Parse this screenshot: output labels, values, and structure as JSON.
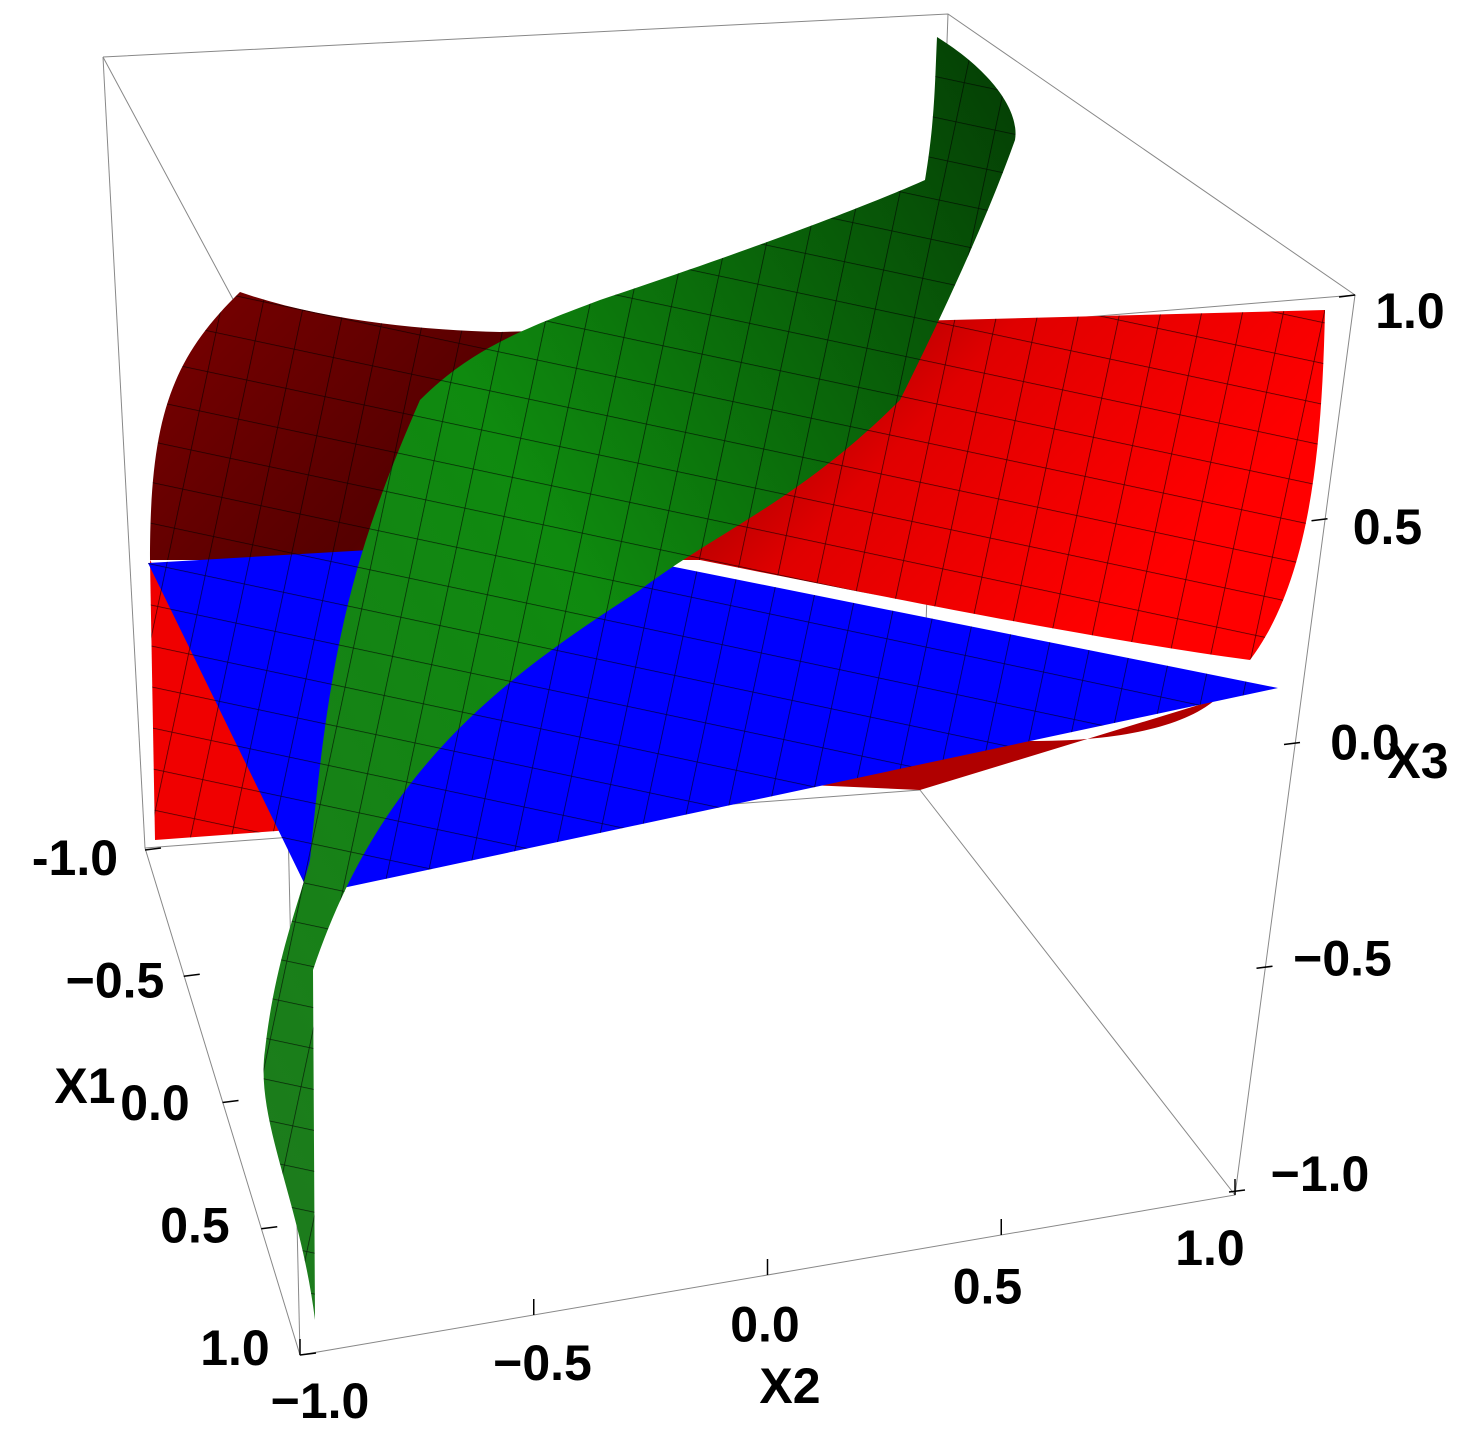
{
  "chart_data": {
    "type": "surface3d",
    "xlabel": "X1",
    "ylabel": "X2",
    "zlabel": "X3",
    "xlim": [
      -1,
      1
    ],
    "ylim": [
      -1,
      1
    ],
    "zlim": [
      -1,
      1
    ],
    "xticks": [
      {
        "value": -1,
        "label": "-1.0"
      },
      {
        "value": -0.5,
        "label": "−0.5"
      },
      {
        "value": 0,
        "label": "0.0"
      },
      {
        "value": 0.5,
        "label": "0.5"
      },
      {
        "value": 1,
        "label": "1.0"
      }
    ],
    "yticks": [
      {
        "value": -1,
        "label": "−1.0"
      },
      {
        "value": -0.5,
        "label": "−0.5"
      },
      {
        "value": 0,
        "label": "0.0"
      },
      {
        "value": 0.5,
        "label": "0.5"
      },
      {
        "value": 1,
        "label": "1.0"
      }
    ],
    "zticks": [
      {
        "value": -1,
        "label": "−1.0"
      },
      {
        "value": -0.5,
        "label": "−0.5"
      },
      {
        "value": 0,
        "label": "0.0"
      },
      {
        "value": 0.5,
        "label": "0.5"
      },
      {
        "value": 1,
        "label": "1.0"
      }
    ]
  }
}
